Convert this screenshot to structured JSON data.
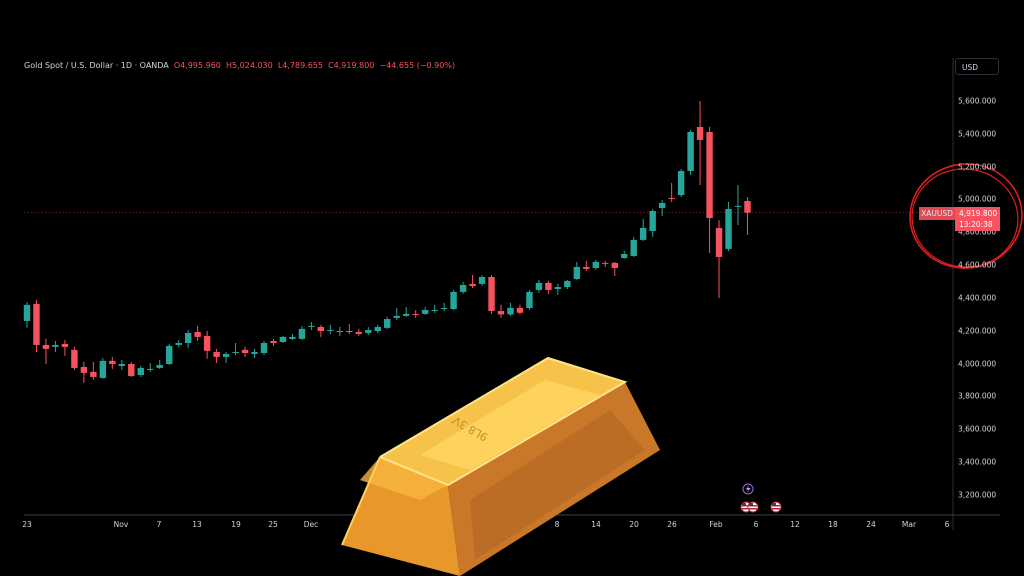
{
  "header": {
    "symbol_title": "Gold Spot / U.S. Dollar · 1D · OANDA",
    "open": "O4,995.960",
    "high": "H5,024.030",
    "low": "L4,789.655",
    "close": "C4,919.800",
    "change": "−44.655 (−0.90%)"
  },
  "price_scale": {
    "currency": "USD",
    "symbol_tag": "XAUUSD",
    "last_price": "4,919.800",
    "countdown": "13:20:38"
  },
  "colors": {
    "up": "#26a69a",
    "down": "#f7525f",
    "annotation_circle": "#e01e1e",
    "gold": "#f2b233"
  },
  "overlay": {
    "gold_bar_engraving": "9L8 3Ѵ"
  },
  "chart_data": {
    "type": "candlestick",
    "title": "Gold Spot / U.S. Dollar · 1D · OANDA",
    "y_ticks": [
      "5,600.000",
      "5,400.000",
      "5,200.000",
      "5,000.000",
      "4,800.000",
      "4,600.000",
      "4,400.000",
      "4,200.000",
      "4,000.000",
      "3,800.000",
      "3,600.000",
      "3,400.000",
      "3,200.000"
    ],
    "x_ticks": [
      "23",
      "Nov",
      "7",
      "13",
      "19",
      "25",
      "Dec",
      "8",
      "14",
      "20",
      "26",
      "Feb",
      "6",
      "12",
      "18",
      "24",
      "Mar",
      "6"
    ],
    "ylim": [
      3200,
      5600
    ],
    "grid": false,
    "last_price_line": 4919.8,
    "ohlc": [
      [
        4260,
        4376,
        4218,
        4358
      ],
      [
        4364,
        4388,
        4071,
        4114
      ],
      [
        4114,
        4151,
        3998,
        4090
      ],
      [
        4102,
        4138,
        4071,
        4114
      ],
      [
        4120,
        4145,
        4047,
        4102
      ],
      [
        4084,
        4102,
        3962,
        3974
      ],
      [
        3980,
        4011,
        3883,
        3944
      ],
      [
        3950,
        4011,
        3901,
        3919
      ],
      [
        3913,
        4035,
        3907,
        4017
      ],
      [
        4017,
        4041,
        3968,
        3998
      ],
      [
        3986,
        4023,
        3962,
        3998
      ],
      [
        3998,
        4011,
        3919,
        3925
      ],
      [
        3931,
        3986,
        3919,
        3974
      ],
      [
        3962,
        4004,
        3950,
        3968
      ],
      [
        3974,
        4023,
        3968,
        3992
      ],
      [
        3998,
        4120,
        3992,
        4108
      ],
      [
        4114,
        4145,
        4102,
        4126
      ],
      [
        4126,
        4205,
        4096,
        4187
      ],
      [
        4193,
        4230,
        4138,
        4163
      ],
      [
        4169,
        4199,
        4029,
        4078
      ],
      [
        4071,
        4090,
        4004,
        4041
      ],
      [
        4041,
        4071,
        4004,
        4059
      ],
      [
        4065,
        4126,
        4053,
        4071
      ],
      [
        4084,
        4102,
        4041,
        4065
      ],
      [
        4059,
        4090,
        4035,
        4071
      ],
      [
        4065,
        4138,
        4053,
        4126
      ],
      [
        4138,
        4151,
        4108,
        4126
      ],
      [
        4132,
        4169,
        4126,
        4163
      ],
      [
        4151,
        4181,
        4145,
        4163
      ],
      [
        4151,
        4230,
        4145,
        4212
      ],
      [
        4224,
        4254,
        4205,
        4230
      ],
      [
        4224,
        4236,
        4163,
        4199
      ],
      [
        4199,
        4236,
        4181,
        4205
      ],
      [
        4193,
        4224,
        4169,
        4199
      ],
      [
        4199,
        4242,
        4181,
        4193
      ],
      [
        4193,
        4212,
        4169,
        4181
      ],
      [
        4187,
        4224,
        4175,
        4205
      ],
      [
        4199,
        4236,
        4187,
        4224
      ],
      [
        4218,
        4285,
        4212,
        4272
      ],
      [
        4279,
        4339,
        4266,
        4291
      ],
      [
        4291,
        4345,
        4285,
        4303
      ],
      [
        4303,
        4327,
        4279,
        4297
      ],
      [
        4303,
        4345,
        4297,
        4327
      ],
      [
        4321,
        4358,
        4309,
        4327
      ],
      [
        4333,
        4370,
        4321,
        4339
      ],
      [
        4333,
        4449,
        4327,
        4437
      ],
      [
        4437,
        4498,
        4425,
        4479
      ],
      [
        4486,
        4540,
        4461,
        4473
      ],
      [
        4486,
        4540,
        4473,
        4528
      ],
      [
        4528,
        4540,
        4303,
        4321
      ],
      [
        4321,
        4360,
        4280,
        4300
      ],
      [
        4300,
        4370,
        4290,
        4340
      ],
      [
        4340,
        4360,
        4300,
        4310
      ],
      [
        4339,
        4449,
        4327,
        4437
      ],
      [
        4449,
        4510,
        4431,
        4492
      ],
      [
        4492,
        4504,
        4425,
        4449
      ],
      [
        4455,
        4486,
        4419,
        4467
      ],
      [
        4467,
        4510,
        4455,
        4504
      ],
      [
        4516,
        4620,
        4510,
        4589
      ],
      [
        4589,
        4626,
        4565,
        4577
      ],
      [
        4583,
        4632,
        4571,
        4620
      ],
      [
        4614,
        4626,
        4589,
        4608
      ],
      [
        4614,
        4620,
        4534,
        4583
      ],
      [
        4644,
        4687,
        4638,
        4668
      ],
      [
        4656,
        4772,
        4650,
        4754
      ],
      [
        4754,
        4881,
        4747,
        4827
      ],
      [
        4808,
        4942,
        4772,
        4930
      ],
      [
        4948,
        4997,
        4900,
        4979
      ],
      [
        5009,
        5101,
        4985,
        5003
      ],
      [
        5027,
        5186,
        5015,
        5174
      ],
      [
        5174,
        5423,
        5149,
        5411
      ],
      [
        5442,
        5600,
        5088,
        5363
      ],
      [
        5411,
        5442,
        4674,
        4887
      ],
      [
        4827,
        4875,
        4400,
        4650
      ],
      [
        4699,
        4985,
        4687,
        4942
      ],
      [
        4955,
        5088,
        4845,
        4961
      ],
      [
        4991,
        5015,
        4784,
        4919.8
      ]
    ],
    "events": [
      "lightning-event-icon",
      "us-flag-event-icon",
      "us-flag-event-icon",
      "us-flag-event-icon"
    ]
  }
}
